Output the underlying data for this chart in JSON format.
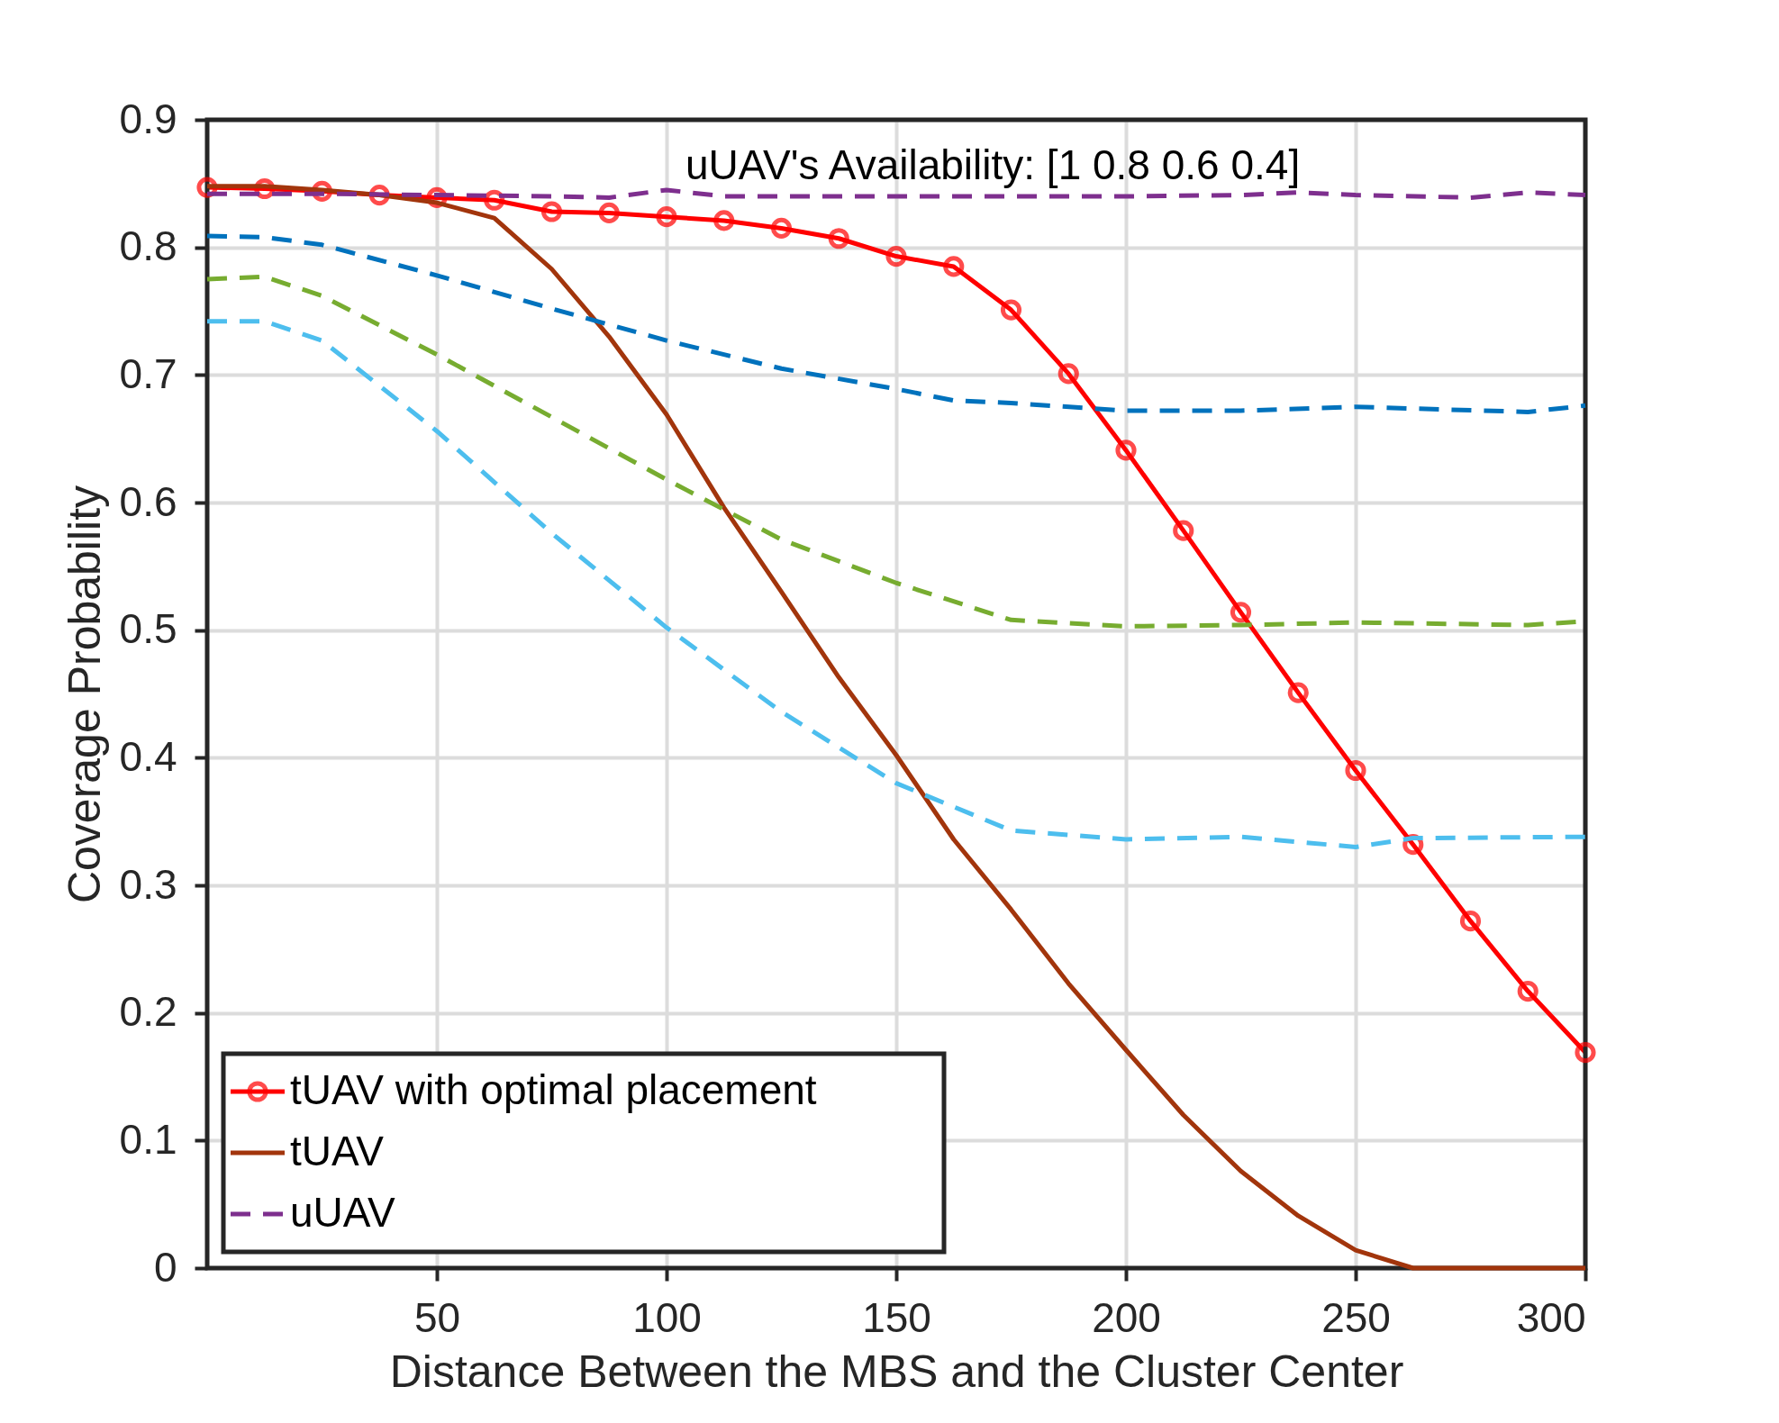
{
  "chart_data": {
    "type": "line",
    "xlabel": "Distance Between the MBS and the Cluster Center",
    "ylabel": "Coverage Probability",
    "xlim": [
      0,
      300
    ],
    "xticks": [
      50,
      100,
      150,
      200,
      250,
      300
    ],
    "ylim": [
      0,
      0.9
    ],
    "yticks": [
      0,
      0.1,
      0.2,
      0.3,
      0.4,
      0.5,
      0.6,
      0.7,
      0.8,
      0.9
    ],
    "grid": true,
    "legend": "bottom left",
    "annotations": [
      "uUAV's Availability: [1 0.8 0.6 0.4]"
    ],
    "series": [
      {
        "name": "tUAV with optimal placement",
        "color": "#ff0000",
        "marker": "circle",
        "line_style": "solid",
        "x": [
          0,
          12.5,
          25,
          37.5,
          50,
          62.5,
          75,
          87.5,
          100,
          112.5,
          125,
          137.5,
          150,
          162.5,
          175,
          187.5,
          200,
          212.5,
          225,
          237.5,
          250,
          262.5,
          275,
          287.5,
          300
        ],
        "values": [
          0.847,
          0.846,
          0.844,
          0.841,
          0.839,
          0.837,
          0.828,
          0.827,
          0.824,
          0.821,
          0.815,
          0.807,
          0.793,
          0.785,
          0.751,
          0.701,
          0.641,
          0.578,
          0.514,
          0.451,
          0.39,
          0.332,
          0.272,
          0.217,
          0.169
        ]
      },
      {
        "name": "tUAV",
        "color": "#a2350c",
        "marker": "none",
        "line_style": "solid",
        "x": [
          0,
          12.5,
          25,
          37.5,
          50,
          62.5,
          75,
          87.5,
          100,
          112.5,
          125,
          137.5,
          150,
          162.5,
          175,
          187.5,
          200,
          212.5,
          225,
          237.5,
          250,
          262.5,
          275,
          287.5,
          300
        ],
        "values": [
          0.848,
          0.848,
          0.845,
          0.841,
          0.835,
          0.823,
          0.783,
          0.73,
          0.669,
          0.596,
          0.53,
          0.463,
          0.402,
          0.336,
          0.281,
          0.223,
          0.171,
          0.12,
          0.076,
          0.041,
          0.014,
          0,
          0,
          0,
          0
        ]
      },
      {
        "name": "uUAV",
        "color": "#7e2f8e",
        "marker": "none",
        "line_style": "dashed",
        "x": [
          0,
          25,
          50,
          75,
          87.5,
          100,
          112.5,
          150,
          200,
          225,
          237.5,
          250,
          275,
          287.5,
          300
        ],
        "values": [
          0.842,
          0.842,
          0.841,
          0.84,
          0.839,
          0.845,
          0.84,
          0.84,
          0.84,
          0.841,
          0.843,
          0.841,
          0.839,
          0.843,
          0.841
        ]
      },
      {
        "color": "#0072bd",
        "marker": "none",
        "line_style": "dashed",
        "x": [
          0,
          12.5,
          25,
          50,
          75,
          100,
          125,
          150,
          162.5,
          175,
          200,
          225,
          250,
          287.5,
          300
        ],
        "values": [
          0.809,
          0.808,
          0.802,
          0.778,
          0.752,
          0.727,
          0.705,
          0.689,
          0.68,
          0.678,
          0.672,
          0.672,
          0.675,
          0.671,
          0.676
        ]
      },
      {
        "color": "#77ac30",
        "marker": "none",
        "line_style": "dashed",
        "x": [
          0,
          12.5,
          25,
          50,
          75,
          100,
          125,
          150,
          175,
          200,
          225,
          250,
          287.5,
          300
        ],
        "values": [
          0.775,
          0.777,
          0.762,
          0.716,
          0.667,
          0.618,
          0.571,
          0.537,
          0.508,
          0.503,
          0.504,
          0.506,
          0.504,
          0.507
        ]
      },
      {
        "color": "#4dbeee",
        "marker": "none",
        "line_style": "dashed",
        "x": [
          0,
          12.5,
          25,
          50,
          75,
          100,
          125,
          150,
          175,
          200,
          225,
          250,
          262.5,
          300
        ],
        "values": [
          0.742,
          0.742,
          0.727,
          0.656,
          0.576,
          0.502,
          0.436,
          0.38,
          0.343,
          0.336,
          0.338,
          0.33,
          0.337,
          0.338
        ]
      }
    ]
  }
}
